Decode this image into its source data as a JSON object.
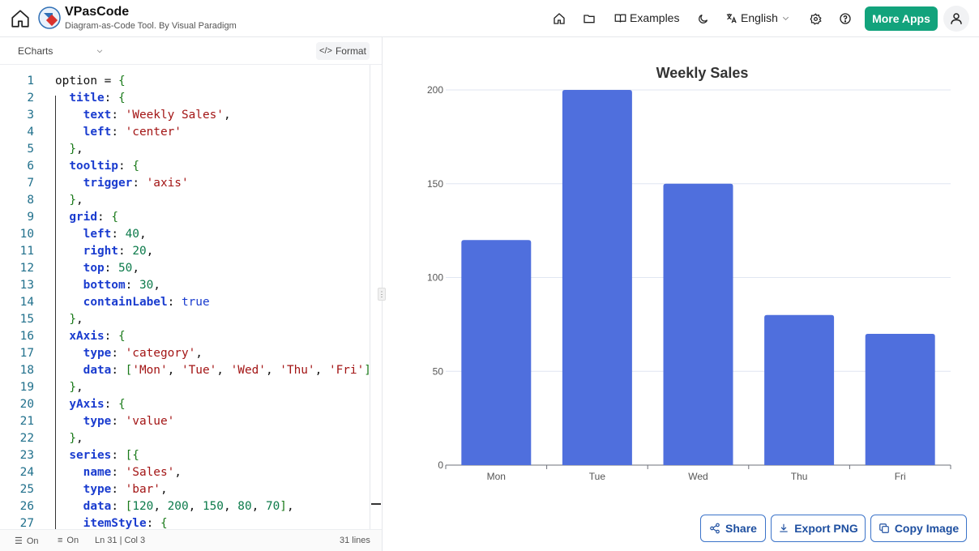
{
  "header": {
    "app_name": "VPasCode",
    "tagline": "Diagram-as-Code Tool. By Visual Paradigm",
    "nav": {
      "examples_label": "Examples",
      "language_label": "English",
      "more_apps_label": "More Apps"
    },
    "accent_color": "#12a37c"
  },
  "editor": {
    "language": "ECharts",
    "format_label": "Format",
    "lines": [
      {
        "n": "1"
      },
      {
        "n": "2"
      },
      {
        "n": "3"
      },
      {
        "n": "4"
      },
      {
        "n": "5"
      },
      {
        "n": "6"
      },
      {
        "n": "7"
      },
      {
        "n": "8"
      },
      {
        "n": "9"
      },
      {
        "n": "10"
      },
      {
        "n": "11"
      },
      {
        "n": "12"
      },
      {
        "n": "13"
      },
      {
        "n": "14"
      },
      {
        "n": "15"
      },
      {
        "n": "16"
      },
      {
        "n": "17"
      },
      {
        "n": "18"
      },
      {
        "n": "19"
      },
      {
        "n": "20"
      },
      {
        "n": "21"
      },
      {
        "n": "22"
      },
      {
        "n": "23"
      },
      {
        "n": "24"
      },
      {
        "n": "25"
      },
      {
        "n": "26"
      },
      {
        "n": "27"
      }
    ],
    "code_text": [
      "option = {",
      "  title: {",
      "    text: 'Weekly Sales',",
      "    left: 'center'",
      "  },",
      "  tooltip: {",
      "    trigger: 'axis'",
      "  },",
      "  grid: {",
      "    left: 40,",
      "    right: 20,",
      "    top: 50,",
      "    bottom: 30,",
      "    containLabel: true",
      "  },",
      "  xAxis: {",
      "    type: 'category',",
      "    data: ['Mon', 'Tue', 'Wed', 'Thu', 'Fri']",
      "  },",
      "  yAxis: {",
      "    type: 'value'",
      "  },",
      "  series: [{",
      "    name: 'Sales',",
      "    type: 'bar',",
      "    data: [120, 200, 150, 80, 70],",
      "    itemStyle: {"
    ],
    "status": {
      "wrap_label": "On",
      "minimap_label": "On",
      "cursor": "Ln 31 | Col 3",
      "line_count": "31 lines"
    }
  },
  "preview": {
    "share_label": "Share",
    "export_label": "Export PNG",
    "copy_label": "Copy Image",
    "button_color": "#3b73c9"
  },
  "chart_data": {
    "type": "bar",
    "title": "Weekly Sales",
    "categories": [
      "Mon",
      "Tue",
      "Wed",
      "Thu",
      "Fri"
    ],
    "series": [
      {
        "name": "Sales",
        "values": [
          120,
          200,
          150,
          80,
          70
        ]
      }
    ],
    "yticks": [
      "0",
      "50",
      "100",
      "150",
      "200"
    ],
    "ylim": [
      0,
      200
    ],
    "grid": true,
    "bar_color": "#4f6fdd"
  }
}
